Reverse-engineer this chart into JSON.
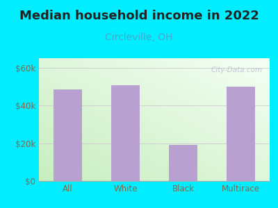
{
  "title": "Median household income in 2022",
  "subtitle": "Circleville, OH",
  "categories": [
    "All",
    "White",
    "Black",
    "Multirace"
  ],
  "values": [
    48500,
    50500,
    19000,
    50000
  ],
  "bar_color": "#b8a0d0",
  "title_fontsize": 13,
  "subtitle_fontsize": 10,
  "subtitle_color": "#44aacc",
  "tick_label_color": "#886644",
  "background_color": "#00eeff",
  "yticks": [
    0,
    20000,
    40000,
    60000
  ],
  "ytick_labels": [
    "$0",
    "$20k",
    "$40k",
    "$60k"
  ],
  "ylim": [
    0,
    65000
  ],
  "watermark": "City-Data.com",
  "title_color": "#222222",
  "grid_color": "#cccccc",
  "plot_left_color": "#c8eec0",
  "plot_right_color": "#f0fff8"
}
